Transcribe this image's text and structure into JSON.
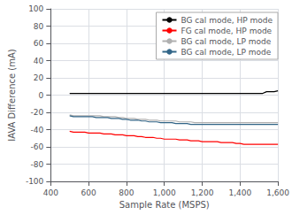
{
  "chart_data": {
    "type": "line",
    "xlabel": "Sample Rate (MSPS)",
    "ylabel": "IAVA Difference (mA)",
    "xlim": [
      400,
      1600
    ],
    "ylim": [
      -100,
      100
    ],
    "xticks": [
      400,
      600,
      800,
      1000,
      1200,
      1400,
      1600
    ],
    "yticks": [
      -100,
      -80,
      -60,
      -40,
      -20,
      0,
      20,
      40,
      60,
      80,
      100
    ],
    "grid": true,
    "legend": "upper right",
    "x": [
      500,
      520,
      540,
      560,
      580,
      600,
      620,
      640,
      660,
      680,
      700,
      720,
      740,
      760,
      780,
      800,
      820,
      840,
      860,
      880,
      900,
      920,
      940,
      960,
      980,
      1000,
      1020,
      1040,
      1060,
      1080,
      1100,
      1120,
      1140,
      1160,
      1180,
      1200,
      1220,
      1240,
      1260,
      1280,
      1300,
      1320,
      1340,
      1360,
      1380,
      1400,
      1420,
      1440,
      1460,
      1480,
      1500,
      1520,
      1540,
      1560,
      1580,
      1600
    ],
    "series": [
      {
        "name": "BG cal mode, HP mode",
        "color": "#000000",
        "values": [
          2,
          2,
          2,
          2,
          2,
          2,
          2,
          2,
          2,
          2,
          2,
          2,
          2,
          2,
          2,
          2,
          2,
          2,
          2,
          2,
          2,
          2,
          2,
          2,
          2,
          2,
          2,
          2,
          2,
          2,
          2,
          2,
          2,
          2,
          2,
          2,
          2,
          2,
          2,
          2,
          2,
          2,
          2,
          2,
          2,
          2,
          2,
          2,
          2,
          2,
          2,
          2,
          4,
          4,
          4,
          5
        ]
      },
      {
        "name": "FG cal mode, HP mode",
        "color": "#ff0000",
        "values": [
          -42,
          -43,
          -43,
          -43,
          -43,
          -44,
          -44,
          -44,
          -44,
          -45,
          -45,
          -45,
          -46,
          -46,
          -46,
          -47,
          -47,
          -47,
          -48,
          -48,
          -49,
          -49,
          -49,
          -50,
          -50,
          -51,
          -51,
          -51,
          -51,
          -52,
          -52,
          -52,
          -53,
          -53,
          -53,
          -54,
          -54,
          -54,
          -54,
          -54,
          -55,
          -55,
          -55,
          -55,
          -56,
          -56,
          -57,
          -57,
          -57,
          -57,
          -57,
          -57,
          -57,
          -57,
          -57,
          -57
        ]
      },
      {
        "name": "BG cal mode, LP mode",
        "color": "#b0b0b0",
        "values": [
          -23,
          -24,
          -24,
          -24,
          -24,
          -24,
          -24,
          -24,
          -24,
          -25,
          -25,
          -25,
          -25,
          -26,
          -26,
          -27,
          -27,
          -27,
          -28,
          -28,
          -28,
          -29,
          -29,
          -29,
          -30,
          -30,
          -30,
          -30,
          -30,
          -31,
          -31,
          -31,
          -31,
          -32,
          -32,
          -32,
          -32,
          -32,
          -32,
          -32,
          -32,
          -32,
          -32,
          -32,
          -32,
          -32,
          -32,
          -32,
          -32,
          -32,
          -32,
          -32,
          -32,
          -32,
          -32,
          -32
        ]
      },
      {
        "name": "BG cal mode, LP mode",
        "color": "#336688",
        "values": [
          -24,
          -25,
          -25,
          -25,
          -25,
          -25,
          -25,
          -26,
          -26,
          -26,
          -26,
          -27,
          -27,
          -27,
          -28,
          -28,
          -29,
          -29,
          -29,
          -30,
          -30,
          -31,
          -31,
          -31,
          -32,
          -32,
          -32,
          -32,
          -33,
          -33,
          -33,
          -33,
          -34,
          -34,
          -34,
          -34,
          -34,
          -34,
          -34,
          -34,
          -34,
          -34,
          -34,
          -34,
          -34,
          -34,
          -34,
          -34,
          -34,
          -34,
          -34,
          -34,
          -34,
          -34,
          -34,
          -34
        ]
      }
    ]
  }
}
